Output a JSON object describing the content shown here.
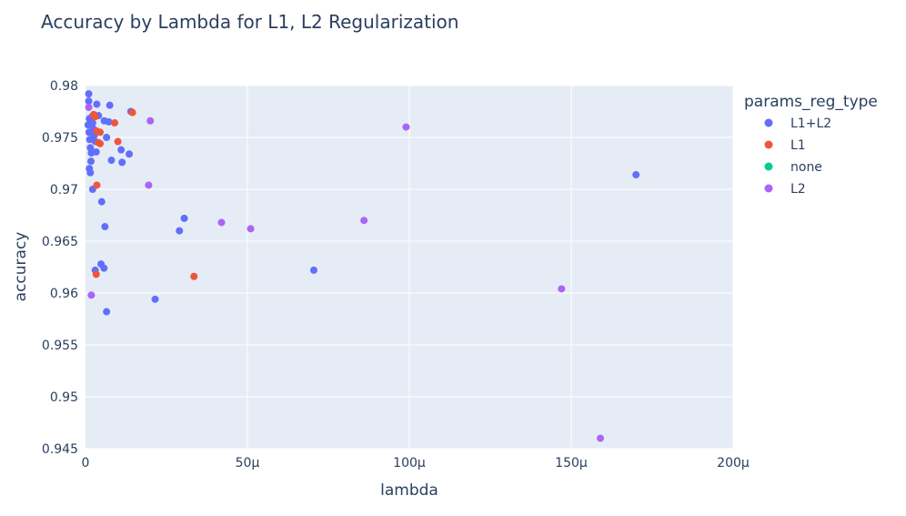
{
  "chart_data": {
    "type": "scatter",
    "title": "Accuracy by Lambda for L1, L2 Regularization",
    "xlabel": "lambda",
    "ylabel": "accuracy",
    "xlim": [
      0,
      0.0002
    ],
    "ylim": [
      0.945,
      0.98
    ],
    "x_ticks": [
      {
        "value": 0,
        "label": "0"
      },
      {
        "value": 5e-05,
        "label": "50μ"
      },
      {
        "value": 0.0001,
        "label": "100μ"
      },
      {
        "value": 0.00015,
        "label": "150μ"
      },
      {
        "value": 0.0002,
        "label": "200μ"
      }
    ],
    "y_ticks": [
      {
        "value": 0.945,
        "label": "0.945"
      },
      {
        "value": 0.95,
        "label": "0.95"
      },
      {
        "value": 0.955,
        "label": "0.955"
      },
      {
        "value": 0.96,
        "label": "0.96"
      },
      {
        "value": 0.965,
        "label": "0.965"
      },
      {
        "value": 0.97,
        "label": "0.97"
      },
      {
        "value": 0.975,
        "label": "0.975"
      },
      {
        "value": 0.98,
        "label": "0.98"
      }
    ],
    "grid": true,
    "legend": {
      "title": "params_reg_type",
      "placement": "right"
    },
    "series": [
      {
        "name": "L1+L2",
        "color": "#636efa",
        "points": [
          [
            1e-06,
            0.9792
          ],
          [
            1e-06,
            0.9785
          ],
          [
            1.2e-06,
            0.9768
          ],
          [
            8e-07,
            0.9762
          ],
          [
            1.1e-06,
            0.9755
          ],
          [
            1.3e-06,
            0.9748
          ],
          [
            1.5e-06,
            0.974
          ],
          [
            1.8e-06,
            0.9735
          ],
          [
            1.7e-06,
            0.9727
          ],
          [
            1.2e-06,
            0.972
          ],
          [
            1.5e-06,
            0.9716
          ],
          [
            2e-06,
            0.977
          ],
          [
            2.2e-06,
            0.9764
          ],
          [
            2.5e-06,
            0.9758
          ],
          [
            2.7e-06,
            0.9752
          ],
          [
            3e-06,
            0.9746
          ],
          [
            3.3e-06,
            0.9736
          ],
          [
            2.2e-06,
            0.97
          ],
          [
            3.5e-06,
            0.9782
          ],
          [
            4e-06,
            0.9771
          ],
          [
            5e-06,
            0.9688
          ],
          [
            5.8e-06,
            0.9766
          ],
          [
            6.5e-06,
            0.975
          ],
          [
            7.2e-06,
            0.9765
          ],
          [
            7.5e-06,
            0.9781
          ],
          [
            8e-06,
            0.9728
          ],
          [
            1.1e-05,
            0.9738
          ],
          [
            1.13e-05,
            0.9726
          ],
          [
            1.35e-05,
            0.9734
          ],
          [
            1.4e-05,
            0.9775
          ],
          [
            6e-06,
            0.9664
          ],
          [
            4.8e-06,
            0.9628
          ],
          [
            5.7e-06,
            0.9624
          ],
          [
            3e-06,
            0.9622
          ],
          [
            6.5e-06,
            0.9582
          ],
          [
            2.9e-05,
            0.966
          ],
          [
            3.05e-05,
            0.9672
          ],
          [
            2.15e-05,
            0.9594
          ],
          [
            7.05e-05,
            0.9622
          ],
          [
            0.00017,
            0.9714
          ]
        ]
      },
      {
        "name": "L1",
        "color": "#ef553b",
        "points": [
          [
            2.5e-06,
            0.9772
          ],
          [
            3e-06,
            0.977
          ],
          [
            3.5e-06,
            0.9756
          ],
          [
            4.5e-06,
            0.9755
          ],
          [
            4e-06,
            0.9745
          ],
          [
            4.5e-06,
            0.9744
          ],
          [
            3.5e-06,
            0.9704
          ],
          [
            9e-06,
            0.9764
          ],
          [
            1e-05,
            0.9746
          ],
          [
            1.45e-05,
            0.9774
          ],
          [
            3.3e-06,
            0.9618
          ],
          [
            3.35e-05,
            0.9616
          ]
        ]
      },
      {
        "name": "none",
        "color": "#00cc96",
        "points": []
      },
      {
        "name": "L2",
        "color": "#ab63fa",
        "points": [
          [
            1e-06,
            0.9779
          ],
          [
            2e-05,
            0.9766
          ],
          [
            1.95e-05,
            0.9704
          ],
          [
            1.8e-06,
            0.9598
          ],
          [
            4.2e-05,
            0.9668
          ],
          [
            5.1e-05,
            0.9662
          ],
          [
            8.6e-05,
            0.967
          ],
          [
            9.9e-05,
            0.976
          ],
          [
            0.000147,
            0.9604
          ],
          [
            0.000159,
            0.946
          ]
        ]
      }
    ]
  }
}
